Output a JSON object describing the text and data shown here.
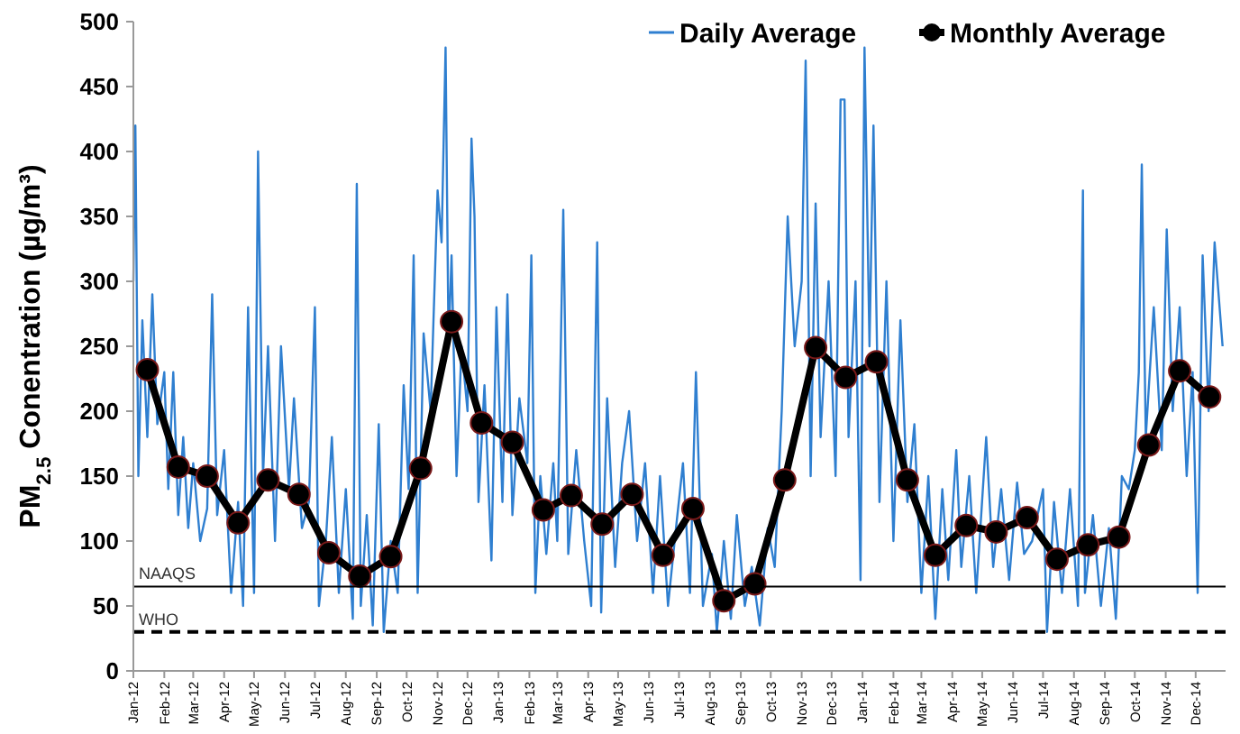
{
  "chart_data": {
    "type": "line",
    "ylabel": "PM$_{2.5}$ Conentration (µg/m³)",
    "xlim": [
      "2012-01-01",
      "2014-12-31"
    ],
    "ylim": [
      0,
      500
    ],
    "yticks": [
      0,
      50,
      100,
      150,
      200,
      250,
      300,
      350,
      400,
      450,
      500
    ],
    "xticks": [
      {
        "value": "2012-01-01",
        "label": "Jan-12"
      },
      {
        "value": "2012-02-01",
        "label": "Feb-12"
      },
      {
        "value": "2012-03-01",
        "label": "Mar-12"
      },
      {
        "value": "2012-04-01",
        "label": "Apr-12"
      },
      {
        "value": "2012-05-01",
        "label": "May-12"
      },
      {
        "value": "2012-06-01",
        "label": "Jun-12"
      },
      {
        "value": "2012-07-01",
        "label": "Jul-12"
      },
      {
        "value": "2012-08-01",
        "label": "Aug-12"
      },
      {
        "value": "2012-09-01",
        "label": "Sep-12"
      },
      {
        "value": "2012-10-01",
        "label": "Oct-12"
      },
      {
        "value": "2012-11-01",
        "label": "Nov-12"
      },
      {
        "value": "2012-12-01",
        "label": "Dec-12"
      },
      {
        "value": "2013-01-01",
        "label": "Jan-13"
      },
      {
        "value": "2013-02-01",
        "label": "Feb-13"
      },
      {
        "value": "2013-03-01",
        "label": "Mar-13"
      },
      {
        "value": "2013-04-01",
        "label": "Apr-13"
      },
      {
        "value": "2013-05-01",
        "label": "May-13"
      },
      {
        "value": "2013-06-01",
        "label": "Jun-13"
      },
      {
        "value": "2013-07-01",
        "label": "Jul-13"
      },
      {
        "value": "2013-08-01",
        "label": "Aug-13"
      },
      {
        "value": "2013-09-01",
        "label": "Sep-13"
      },
      {
        "value": "2013-10-01",
        "label": "Oct-13"
      },
      {
        "value": "2013-11-01",
        "label": "Nov-13"
      },
      {
        "value": "2013-12-01",
        "label": "Dec-13"
      },
      {
        "value": "2014-01-01",
        "label": "Jan-14"
      },
      {
        "value": "2014-02-01",
        "label": "Feb-14"
      },
      {
        "value": "2014-03-01",
        "label": "Mar-14"
      },
      {
        "value": "2014-04-01",
        "label": "Apr-14"
      },
      {
        "value": "2014-05-01",
        "label": "May-14"
      },
      {
        "value": "2014-06-01",
        "label": "Jun-14"
      },
      {
        "value": "2014-07-01",
        "label": "Jul-14"
      },
      {
        "value": "2014-08-01",
        "label": "Aug-14"
      },
      {
        "value": "2014-09-01",
        "label": "Sep-14"
      },
      {
        "value": "2014-10-01",
        "label": "Oct-14"
      },
      {
        "value": "2014-11-01",
        "label": "Nov-14"
      },
      {
        "value": "2014-12-01",
        "label": "Dec-14"
      }
    ],
    "grid": false,
    "legend": "top right",
    "ref_lines": [
      {
        "axis": "y",
        "value": 65,
        "label": "NAAQS",
        "color": "#000000",
        "line_style": "solid"
      },
      {
        "axis": "y",
        "value": 30,
        "label": "WHO",
        "color": "#000000",
        "line_style": "dashed"
      }
    ],
    "series": [
      {
        "name": "Daily Average",
        "color": "#2f7fd0",
        "marker": "none",
        "x": [
          "2012-01-01",
          "2012-01-03",
          "2012-01-06",
          "2012-01-10",
          "2012-01-15",
          "2012-01-20",
          "2012-01-25",
          "2012-02-01",
          "2012-02-05",
          "2012-02-10",
          "2012-02-15",
          "2012-02-20",
          "2012-02-25",
          "2012-03-01",
          "2012-03-08",
          "2012-03-15",
          "2012-03-20",
          "2012-03-25",
          "2012-04-01",
          "2012-04-08",
          "2012-04-15",
          "2012-04-20",
          "2012-04-25",
          "2012-05-01",
          "2012-05-05",
          "2012-05-10",
          "2012-05-15",
          "2012-05-22",
          "2012-05-28",
          "2012-06-05",
          "2012-06-10",
          "2012-06-18",
          "2012-06-25",
          "2012-07-01",
          "2012-07-05",
          "2012-07-12",
          "2012-07-18",
          "2012-07-25",
          "2012-08-01",
          "2012-08-08",
          "2012-08-12",
          "2012-08-16",
          "2012-08-22",
          "2012-08-28",
          "2012-09-03",
          "2012-09-08",
          "2012-09-15",
          "2012-09-22",
          "2012-09-28",
          "2012-10-03",
          "2012-10-08",
          "2012-10-12",
          "2012-10-18",
          "2012-10-25",
          "2012-11-01",
          "2012-11-05",
          "2012-11-09",
          "2012-11-12",
          "2012-11-15",
          "2012-11-20",
          "2012-11-25",
          "2012-12-01",
          "2012-12-05",
          "2012-12-08",
          "2012-12-12",
          "2012-12-18",
          "2012-12-25",
          "2012-12-30",
          "2013-01-05",
          "2013-01-10",
          "2013-01-15",
          "2013-01-22",
          "2013-01-30",
          "2013-02-03",
          "2013-02-07",
          "2013-02-12",
          "2013-02-18",
          "2013-02-25",
          "2013-03-01",
          "2013-03-07",
          "2013-03-12",
          "2013-03-20",
          "2013-03-28",
          "2013-04-04",
          "2013-04-10",
          "2013-04-14",
          "2013-04-20",
          "2013-04-28",
          "2013-05-05",
          "2013-05-12",
          "2013-05-20",
          "2013-05-28",
          "2013-06-05",
          "2013-06-12",
          "2013-06-20",
          "2013-06-28",
          "2013-07-05",
          "2013-07-12",
          "2013-07-18",
          "2013-07-25",
          "2013-08-03",
          "2013-08-08",
          "2013-08-15",
          "2013-08-22",
          "2013-08-28",
          "2013-09-05",
          "2013-09-12",
          "2013-09-20",
          "2013-09-28",
          "2013-10-05",
          "2013-10-12",
          "2013-10-18",
          "2013-10-25",
          "2013-11-01",
          "2013-11-05",
          "2013-11-10",
          "2013-11-15",
          "2013-11-20",
          "2013-11-28",
          "2013-12-05",
          "2013-12-10",
          "2013-12-14",
          "2013-12-18",
          "2013-12-25",
          "2013-12-30",
          "2014-01-03",
          "2014-01-08",
          "2014-01-12",
          "2014-01-18",
          "2014-01-25",
          "2014-02-01",
          "2014-02-08",
          "2014-02-15",
          "2014-02-22",
          "2014-03-01",
          "2014-03-08",
          "2014-03-15",
          "2014-03-22",
          "2014-03-28",
          "2014-04-05",
          "2014-04-10",
          "2014-04-18",
          "2014-04-25",
          "2014-05-05",
          "2014-05-12",
          "2014-05-20",
          "2014-05-28",
          "2014-06-05",
          "2014-06-12",
          "2014-06-20",
          "2014-07-01",
          "2014-07-05",
          "2014-07-12",
          "2014-07-20",
          "2014-07-28",
          "2014-08-05",
          "2014-08-10",
          "2014-08-12",
          "2014-08-20",
          "2014-08-28",
          "2014-09-05",
          "2014-09-12",
          "2014-09-18",
          "2014-09-25",
          "2014-10-01",
          "2014-10-05",
          "2014-10-08",
          "2014-10-12",
          "2014-10-20",
          "2014-10-28",
          "2014-11-02",
          "2014-11-08",
          "2014-11-15",
          "2014-11-22",
          "2014-11-28",
          "2014-12-03",
          "2014-12-08",
          "2014-12-14",
          "2014-12-20",
          "2014-12-28"
        ],
        "values": [
          300,
          420,
          150,
          270,
          180,
          290,
          190,
          230,
          140,
          230,
          120,
          180,
          110,
          160,
          100,
          125,
          290,
          120,
          170,
          60,
          130,
          50,
          280,
          60,
          400,
          150,
          250,
          100,
          250,
          140,
          210,
          110,
          130,
          280,
          50,
          100,
          180,
          60,
          140,
          40,
          375,
          50,
          120,
          35,
          190,
          30,
          100,
          60,
          220,
          140,
          320,
          60,
          260,
          200,
          370,
          330,
          480,
          250,
          320,
          150,
          250,
          200,
          410,
          350,
          130,
          220,
          85,
          280,
          130,
          290,
          120,
          210,
          160,
          320,
          60,
          150,
          90,
          160,
          100,
          355,
          90,
          170,
          100,
          50,
          330,
          45,
          210,
          80,
          160,
          200,
          100,
          160,
          60,
          150,
          50,
          110,
          160,
          60,
          230,
          50,
          90,
          30,
          100,
          40,
          120,
          50,
          80,
          35,
          110,
          80,
          200,
          350,
          250,
          300,
          470,
          150,
          360,
          180,
          300,
          150,
          440,
          440,
          180,
          300,
          70,
          480,
          250,
          420,
          130,
          300,
          100,
          270,
          130,
          190,
          60,
          150,
          40,
          140,
          70,
          170,
          80,
          150,
          60,
          180,
          80,
          140,
          70,
          145,
          90,
          100,
          140,
          30,
          130,
          60,
          140,
          50,
          370,
          60,
          120,
          50,
          110,
          40,
          150,
          140,
          170,
          230,
          390,
          180,
          280,
          170,
          340,
          200,
          280,
          150,
          230,
          60,
          320,
          200,
          330,
          250
        ]
      },
      {
        "name": "Monthly Average",
        "color": "#000000",
        "marker": "circle",
        "x": [
          "2012-01-15",
          "2012-02-15",
          "2012-03-15",
          "2012-04-15",
          "2012-05-15",
          "2012-06-15",
          "2012-07-15",
          "2012-08-15",
          "2012-09-15",
          "2012-10-15",
          "2012-11-15",
          "2012-12-15",
          "2013-01-15",
          "2013-02-15",
          "2013-03-15",
          "2013-04-15",
          "2013-05-15",
          "2013-06-15",
          "2013-07-15",
          "2013-08-15",
          "2013-09-15",
          "2013-10-15",
          "2013-11-15",
          "2013-12-15",
          "2014-01-15",
          "2014-02-15",
          "2014-03-15",
          "2014-04-15",
          "2014-05-15",
          "2014-06-15",
          "2014-07-15",
          "2014-08-15",
          "2014-09-15",
          "2014-10-15",
          "2014-11-15",
          "2014-12-15"
        ],
        "values": [
          232,
          157,
          150,
          114,
          147,
          136,
          91,
          73,
          88,
          156,
          269,
          191,
          176,
          124,
          135,
          113,
          136,
          89,
          125,
          54,
          67,
          147,
          249,
          226,
          238,
          147,
          89,
          112,
          107,
          118,
          86,
          97,
          103,
          174,
          231,
          211
        ]
      }
    ]
  }
}
